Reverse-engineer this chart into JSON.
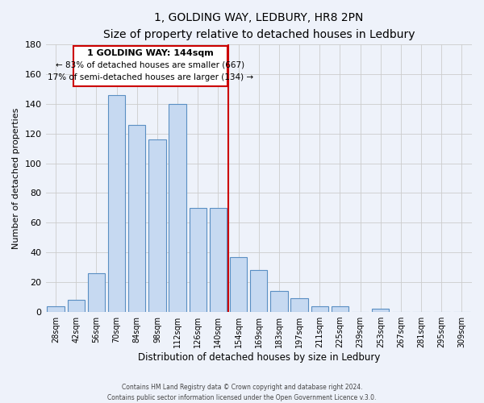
{
  "title": "1, GOLDING WAY, LEDBURY, HR8 2PN",
  "subtitle": "Size of property relative to detached houses in Ledbury",
  "xlabel": "Distribution of detached houses by size in Ledbury",
  "ylabel": "Number of detached properties",
  "bar_labels": [
    "28sqm",
    "42sqm",
    "56sqm",
    "70sqm",
    "84sqm",
    "98sqm",
    "112sqm",
    "126sqm",
    "140sqm",
    "154sqm",
    "169sqm",
    "183sqm",
    "197sqm",
    "211sqm",
    "225sqm",
    "239sqm",
    "253sqm",
    "267sqm",
    "281sqm",
    "295sqm",
    "309sqm"
  ],
  "bar_values": [
    4,
    8,
    26,
    146,
    126,
    116,
    140,
    70,
    70,
    37,
    28,
    14,
    9,
    4,
    4,
    0,
    2,
    0,
    0,
    0,
    0
  ],
  "bar_color": "#c6d9f1",
  "bar_edge_color": "#5a8fc3",
  "vline_x": 8.5,
  "vline_color": "#cc0000",
  "annotation_title": "1 GOLDING WAY: 144sqm",
  "annotation_line1": "← 83% of detached houses are smaller (667)",
  "annotation_line2": "17% of semi-detached houses are larger (134) →",
  "annotation_box_color": "#ffffff",
  "annotation_box_edge": "#cc0000",
  "footer_line1": "Contains HM Land Registry data © Crown copyright and database right 2024.",
  "footer_line2": "Contains public sector information licensed under the Open Government Licence v.3.0.",
  "ylim": [
    0,
    180
  ],
  "background_color": "#eef2fa"
}
